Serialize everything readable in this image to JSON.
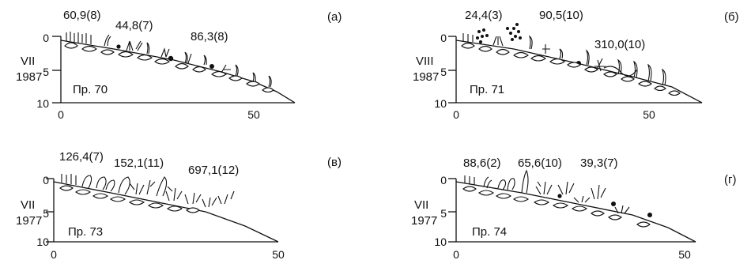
{
  "panels": [
    {
      "id": "a",
      "letter": "(а)",
      "month": "VII",
      "year": "1987",
      "profile": "Пр. 70",
      "yticks": [
        "0",
        "5",
        "10"
      ],
      "xticks": [
        "0",
        "50"
      ],
      "annotations": [
        "60,9(8)",
        "44,8(7)",
        "86,3(8)"
      ]
    },
    {
      "id": "b",
      "letter": "(б)",
      "month": "VIII",
      "year": "1987",
      "profile": "Пр. 71",
      "yticks": [
        "0",
        "5",
        "10"
      ],
      "xticks": [
        "0",
        "50"
      ],
      "annotations": [
        "24,4(3)",
        "90,5(10)",
        "310,0(10)"
      ]
    },
    {
      "id": "v",
      "letter": "(в)",
      "month": "VII",
      "year": "1977",
      "profile": "Пр. 73",
      "yticks": [
        "0",
        "5",
        "10"
      ],
      "xticks": [
        "0",
        "50"
      ],
      "annotations": [
        "126,4(7)",
        "152,1(11)",
        "697,1(12)"
      ]
    },
    {
      "id": "g",
      "letter": "(г)",
      "month": "VII",
      "year": "1977",
      "profile": "Пр. 74",
      "yticks": [
        "0",
        "5",
        "10"
      ],
      "xticks": [
        "0",
        "50"
      ],
      "annotations": [
        "88,6(2)",
        "65,6(10)",
        "39,3(7)"
      ]
    }
  ]
}
